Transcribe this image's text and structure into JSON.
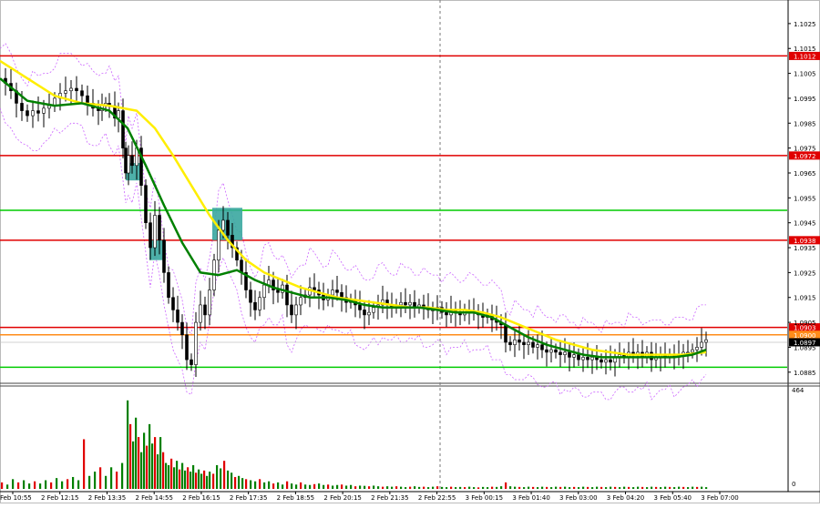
{
  "chart_data": {
    "type": "candlestick",
    "price_axis": {
      "range": [
        1.0882,
        1.1033
      ],
      "ticks": [
        "1.1025",
        "1.1015",
        "1.1005",
        "1.0995",
        "1.0985",
        "1.0975",
        "1.0965",
        "1.0955",
        "1.0945",
        "1.0935",
        "1.0925",
        "1.0915",
        "1.0905",
        "1.0895",
        "1.0885"
      ]
    },
    "horizontal_levels": [
      {
        "price": 1.1012,
        "label": "1.1012",
        "color": "#e00000",
        "labelled": true
      },
      {
        "price": 1.0972,
        "label": "1.0972",
        "color": "#e00000",
        "labelled": true
      },
      {
        "price": 1.0938,
        "label": "1.0938",
        "color": "#e00000",
        "labelled": true
      },
      {
        "price": 1.0903,
        "label": "1.0903",
        "color": "#e00000",
        "labelled": true
      },
      {
        "price": 1.09,
        "label": "1.0900",
        "color": "#ff8c1a",
        "labelled": true
      },
      {
        "price": 1.095,
        "label": "",
        "color": "#00cc00",
        "labelled": false
      },
      {
        "price": 1.0887,
        "label": "",
        "color": "#00cc00",
        "labelled": false
      }
    ],
    "current_price": {
      "price": 1.0897,
      "label": "1.0897",
      "color": "#000000"
    },
    "volume_axis": {
      "max": 464,
      "max_label": "464",
      "min_label": "0"
    },
    "time_labels": [
      "2 Feb 10:55",
      "2 Feb 12:15",
      "2 Feb 13:35",
      "2 Feb 14:55",
      "2 Feb 16:15",
      "2 Feb 17:35",
      "2 Feb 18:55",
      "2 Feb 20:15",
      "2 Feb 21:35",
      "2 Feb 22:55",
      "3 Feb 00:15",
      "3 Feb 01:40",
      "3 Feb 03:00",
      "3 Feb 04:20",
      "3 Feb 05:40",
      "3 Feb 07:00"
    ],
    "close_path": [
      [
        0,
        1.1003
      ],
      [
        6,
        1.1001
      ],
      [
        12,
        1.0998
      ],
      [
        18,
        1.0993
      ],
      [
        24,
        1.099
      ],
      [
        30,
        1.0988
      ],
      [
        36,
        1.099
      ],
      [
        42,
        1.0989
      ],
      [
        48,
        1.0991
      ],
      [
        54,
        1.0992
      ],
      [
        60,
        1.0995
      ],
      [
        66,
        1.0997
      ],
      [
        72,
        1.0998
      ],
      [
        78,
        1.0999
      ],
      [
        84,
        1.0998
      ],
      [
        90,
        1.0996
      ],
      [
        96,
        1.0993
      ],
      [
        102,
        1.0991
      ],
      [
        108,
        1.099
      ],
      [
        112,
        1.0992
      ],
      [
        116,
        1.0993
      ],
      [
        120,
        1.0992
      ],
      [
        126,
        1.0987
      ],
      [
        130,
        1.099
      ],
      [
        135,
        1.0975
      ],
      [
        138,
        1.0965
      ],
      [
        141,
        1.0972
      ],
      [
        145,
        1.0968
      ],
      [
        150,
        1.0975
      ],
      [
        155,
        1.096
      ],
      [
        160,
        1.0945
      ],
      [
        165,
        1.0935
      ],
      [
        170,
        1.0948
      ],
      [
        175,
        1.0938
      ],
      [
        180,
        1.0925
      ],
      [
        185,
        1.0915
      ],
      [
        190,
        1.091
      ],
      [
        195,
        1.0905
      ],
      [
        200,
        1.09
      ],
      [
        205,
        1.089
      ],
      [
        210,
        1.0888
      ],
      [
        215,
        1.0905
      ],
      [
        220,
        1.0912
      ],
      [
        225,
        1.0908
      ],
      [
        230,
        1.0918
      ],
      [
        235,
        1.093
      ],
      [
        240,
        1.0942
      ],
      [
        245,
        1.0946
      ],
      [
        250,
        1.094
      ],
      [
        255,
        1.0935
      ],
      [
        260,
        1.093
      ],
      [
        265,
        1.0925
      ],
      [
        270,
        1.0918
      ],
      [
        275,
        1.0913
      ],
      [
        280,
        1.091
      ],
      [
        285,
        1.0915
      ],
      [
        290,
        1.092
      ],
      [
        295,
        1.0922
      ],
      [
        300,
        1.0918
      ],
      [
        305,
        1.0917
      ],
      [
        310,
        1.092
      ],
      [
        315,
        1.0912
      ],
      [
        320,
        1.0908
      ],
      [
        325,
        1.0912
      ],
      [
        330,
        1.0915
      ],
      [
        335,
        1.0916
      ],
      [
        340,
        1.0919
      ],
      [
        345,
        1.0918
      ],
      [
        350,
        1.0916
      ],
      [
        355,
        1.0914
      ],
      [
        360,
        1.0916
      ],
      [
        365,
        1.0918
      ],
      [
        370,
        1.0917
      ],
      [
        375,
        1.0915
      ],
      [
        380,
        1.0913
      ],
      [
        385,
        1.0914
      ],
      [
        390,
        1.0912
      ],
      [
        395,
        1.091
      ],
      [
        400,
        1.0908
      ],
      [
        405,
        1.0909
      ],
      [
        410,
        1.0911
      ],
      [
        415,
        1.0912
      ],
      [
        420,
        1.0914
      ],
      [
        425,
        1.0912
      ],
      [
        430,
        1.0911
      ],
      [
        435,
        1.0912
      ],
      [
        440,
        1.0913
      ],
      [
        445,
        1.0912
      ],
      [
        450,
        1.0913
      ],
      [
        455,
        1.0911
      ],
      [
        460,
        1.0912
      ],
      [
        465,
        1.0911
      ],
      [
        470,
        1.091
      ],
      [
        475,
        1.091
      ],
      [
        480,
        1.0911
      ],
      [
        485,
        1.0909
      ],
      [
        490,
        1.0908
      ],
      [
        495,
        1.091
      ],
      [
        500,
        1.0909
      ],
      [
        505,
        1.0908
      ],
      [
        510,
        1.091
      ],
      [
        515,
        1.0909
      ],
      [
        520,
        1.0909
      ],
      [
        525,
        1.0908
      ],
      [
        530,
        1.0907
      ],
      [
        535,
        1.0908
      ],
      [
        540,
        1.0906
      ],
      [
        545,
        1.0905
      ],
      [
        550,
        1.0904
      ],
      [
        555,
        1.0897
      ],
      [
        560,
        1.0896
      ],
      [
        565,
        1.0898
      ],
      [
        570,
        1.0897
      ],
      [
        575,
        1.0896
      ],
      [
        580,
        1.0897
      ],
      [
        585,
        1.0895
      ],
      [
        590,
        1.0896
      ],
      [
        595,
        1.0894
      ],
      [
        600,
        1.0893
      ],
      [
        605,
        1.0894
      ],
      [
        610,
        1.0893
      ],
      [
        615,
        1.0892
      ],
      [
        620,
        1.0893
      ],
      [
        625,
        1.0891
      ],
      [
        630,
        1.0892
      ],
      [
        635,
        1.089
      ],
      [
        640,
        1.0891
      ],
      [
        645,
        1.089
      ],
      [
        650,
        1.0891
      ],
      [
        655,
        1.089
      ],
      [
        660,
        1.0889
      ],
      [
        665,
        1.089
      ],
      [
        670,
        1.0889
      ],
      [
        675,
        1.0891
      ],
      [
        680,
        1.0892
      ],
      [
        685,
        1.0891
      ],
      [
        690,
        1.0893
      ],
      [
        695,
        1.0892
      ],
      [
        700,
        1.0893
      ],
      [
        705,
        1.0891
      ],
      [
        710,
        1.0893
      ],
      [
        715,
        1.089
      ],
      [
        720,
        1.0891
      ],
      [
        725,
        1.0892
      ],
      [
        730,
        1.0891
      ],
      [
        735,
        1.0892
      ],
      [
        740,
        1.0891
      ],
      [
        745,
        1.0892
      ],
      [
        750,
        1.0893
      ],
      [
        755,
        1.0893
      ],
      [
        760,
        1.0894
      ],
      [
        765,
        1.0895
      ],
      [
        770,
        1.0897
      ],
      [
        775,
        1.0898
      ]
    ],
    "ma_fast_path": [
      [
        0,
        1.1003
      ],
      [
        30,
        1.0994
      ],
      [
        60,
        1.0992
      ],
      [
        90,
        1.0993
      ],
      [
        120,
        1.099
      ],
      [
        140,
        1.0983
      ],
      [
        160,
        1.0968
      ],
      [
        180,
        1.0952
      ],
      [
        200,
        1.0937
      ],
      [
        220,
        1.0925
      ],
      [
        240,
        1.0924
      ],
      [
        260,
        1.0926
      ],
      [
        280,
        1.0922
      ],
      [
        300,
        1.0919
      ],
      [
        320,
        1.0917
      ],
      [
        340,
        1.0915
      ],
      [
        360,
        1.0915
      ],
      [
        380,
        1.0914
      ],
      [
        400,
        1.0912
      ],
      [
        420,
        1.0911
      ],
      [
        440,
        1.0911
      ],
      [
        460,
        1.0911
      ],
      [
        480,
        1.091
      ],
      [
        500,
        1.0909
      ],
      [
        520,
        1.0909
      ],
      [
        540,
        1.0907
      ],
      [
        560,
        1.0903
      ],
      [
        580,
        1.0899
      ],
      [
        600,
        1.0896
      ],
      [
        620,
        1.0894
      ],
      [
        640,
        1.0892
      ],
      [
        660,
        1.0891
      ],
      [
        680,
        1.0891
      ],
      [
        700,
        1.0891
      ],
      [
        720,
        1.0891
      ],
      [
        740,
        1.0891
      ],
      [
        760,
        1.0892
      ],
      [
        775,
        1.0894
      ]
    ],
    "ma_slow_path": [
      [
        0,
        1.101
      ],
      [
        30,
        1.1003
      ],
      [
        60,
        1.0996
      ],
      [
        90,
        1.0993
      ],
      [
        120,
        1.0992
      ],
      [
        150,
        1.099
      ],
      [
        170,
        1.0983
      ],
      [
        190,
        1.0972
      ],
      [
        210,
        1.096
      ],
      [
        230,
        1.0948
      ],
      [
        250,
        1.0938
      ],
      [
        270,
        1.093
      ],
      [
        290,
        1.0925
      ],
      [
        310,
        1.0922
      ],
      [
        330,
        1.0919
      ],
      [
        350,
        1.0917
      ],
      [
        370,
        1.0915
      ],
      [
        390,
        1.0914
      ],
      [
        410,
        1.0913
      ],
      [
        430,
        1.0912
      ],
      [
        450,
        1.0911
      ],
      [
        470,
        1.0911
      ],
      [
        490,
        1.091
      ],
      [
        510,
        1.091
      ],
      [
        530,
        1.0909
      ],
      [
        550,
        1.0907
      ],
      [
        570,
        1.0904
      ],
      [
        590,
        1.0901
      ],
      [
        610,
        1.0898
      ],
      [
        630,
        1.0896
      ],
      [
        650,
        1.0894
      ],
      [
        670,
        1.0893
      ],
      [
        690,
        1.0892
      ],
      [
        710,
        1.0892
      ],
      [
        730,
        1.0892
      ],
      [
        750,
        1.0892
      ],
      [
        775,
        1.0893
      ]
    ],
    "boxes": [
      {
        "x0": 138,
        "x1": 154,
        "top": 1.0969,
        "bottom": 1.0962
      },
      {
        "x0": 164,
        "x1": 182,
        "top": 1.0938,
        "bottom": 1.093
      },
      {
        "x0": 233,
        "x1": 266,
        "top": 1.0951,
        "bottom": 1.0938
      }
    ],
    "volume_bars": [
      [
        2,
        30
      ],
      [
        8,
        20
      ],
      [
        14,
        45
      ],
      [
        20,
        30
      ],
      [
        26,
        40
      ],
      [
        32,
        25
      ],
      [
        38,
        35
      ],
      [
        44,
        25
      ],
      [
        50,
        40
      ],
      [
        56,
        30
      ],
      [
        62,
        50
      ],
      [
        68,
        35
      ],
      [
        74,
        45
      ],
      [
        80,
        55
      ],
      [
        86,
        40
      ],
      [
        92,
        230
      ],
      [
        98,
        60
      ],
      [
        104,
        80
      ],
      [
        110,
        100
      ],
      [
        116,
        60
      ],
      [
        122,
        100
      ],
      [
        128,
        80
      ],
      [
        134,
        120
      ],
      [
        140,
        410
      ],
      [
        143,
        300
      ],
      [
        146,
        220
      ],
      [
        149,
        330
      ],
      [
        152,
        240
      ],
      [
        155,
        170
      ],
      [
        158,
        260
      ],
      [
        161,
        200
      ],
      [
        164,
        300
      ],
      [
        167,
        210
      ],
      [
        170,
        240
      ],
      [
        173,
        160
      ],
      [
        176,
        240
      ],
      [
        179,
        170
      ],
      [
        182,
        120
      ],
      [
        185,
        110
      ],
      [
        188,
        140
      ],
      [
        191,
        100
      ],
      [
        194,
        130
      ],
      [
        197,
        90
      ],
      [
        200,
        120
      ],
      [
        203,
        85
      ],
      [
        206,
        100
      ],
      [
        209,
        80
      ],
      [
        212,
        110
      ],
      [
        215,
        75
      ],
      [
        218,
        90
      ],
      [
        221,
        70
      ],
      [
        224,
        85
      ],
      [
        227,
        60
      ],
      [
        230,
        80
      ],
      [
        234,
        70
      ],
      [
        238,
        110
      ],
      [
        242,
        95
      ],
      [
        246,
        130
      ],
      [
        250,
        85
      ],
      [
        254,
        75
      ],
      [
        258,
        55
      ],
      [
        262,
        60
      ],
      [
        266,
        50
      ],
      [
        270,
        45
      ],
      [
        275,
        40
      ],
      [
        280,
        35
      ],
      [
        285,
        45
      ],
      [
        290,
        30
      ],
      [
        295,
        35
      ],
      [
        300,
        25
      ],
      [
        305,
        30
      ],
      [
        310,
        20
      ],
      [
        315,
        35
      ],
      [
        320,
        25
      ],
      [
        325,
        20
      ],
      [
        330,
        30
      ],
      [
        335,
        20
      ],
      [
        340,
        18
      ],
      [
        345,
        22
      ],
      [
        350,
        25
      ],
      [
        355,
        18
      ],
      [
        360,
        20
      ],
      [
        365,
        15
      ],
      [
        370,
        18
      ],
      [
        375,
        20
      ],
      [
        380,
        15
      ],
      [
        385,
        18
      ],
      [
        390,
        12
      ],
      [
        395,
        15
      ],
      [
        400,
        14
      ],
      [
        405,
        12
      ],
      [
        410,
        15
      ],
      [
        415,
        12
      ],
      [
        420,
        10
      ],
      [
        425,
        12
      ],
      [
        430,
        10
      ],
      [
        435,
        12
      ],
      [
        440,
        10
      ],
      [
        445,
        8
      ],
      [
        450,
        10
      ],
      [
        455,
        12
      ],
      [
        460,
        9
      ],
      [
        465,
        10
      ],
      [
        470,
        8
      ],
      [
        475,
        10
      ],
      [
        480,
        12
      ],
      [
        485,
        9
      ],
      [
        490,
        8
      ],
      [
        495,
        10
      ],
      [
        500,
        8
      ],
      [
        505,
        9
      ],
      [
        510,
        8
      ],
      [
        515,
        10
      ],
      [
        520,
        8
      ],
      [
        525,
        7
      ],
      [
        530,
        9
      ],
      [
        535,
        8
      ],
      [
        540,
        10
      ],
      [
        545,
        9
      ],
      [
        550,
        12
      ],
      [
        555,
        30
      ],
      [
        560,
        12
      ],
      [
        565,
        10
      ],
      [
        570,
        9
      ],
      [
        575,
        8
      ],
      [
        580,
        10
      ],
      [
        585,
        9
      ],
      [
        590,
        8
      ],
      [
        595,
        10
      ],
      [
        600,
        9
      ],
      [
        605,
        8
      ],
      [
        610,
        10
      ],
      [
        615,
        9
      ],
      [
        620,
        10
      ],
      [
        625,
        8
      ],
      [
        630,
        9
      ],
      [
        635,
        8
      ],
      [
        640,
        10
      ],
      [
        645,
        9
      ],
      [
        650,
        8
      ],
      [
        655,
        10
      ],
      [
        660,
        9
      ],
      [
        665,
        8
      ],
      [
        670,
        10
      ],
      [
        675,
        9
      ],
      [
        680,
        8
      ],
      [
        685,
        10
      ],
      [
        690,
        9
      ],
      [
        695,
        8
      ],
      [
        700,
        10
      ],
      [
        705,
        9
      ],
      [
        710,
        8
      ],
      [
        715,
        10
      ],
      [
        720,
        9
      ],
      [
        725,
        8
      ],
      [
        730,
        10
      ],
      [
        735,
        9
      ],
      [
        740,
        8
      ],
      [
        745,
        10
      ],
      [
        750,
        9
      ],
      [
        755,
        8
      ],
      [
        760,
        10
      ],
      [
        765,
        9
      ],
      [
        770,
        10
      ],
      [
        775,
        8
      ]
    ],
    "colors": {
      "up": "#00aa00",
      "down": "#000000",
      "ma_fast": "#008000",
      "ma_slow": "#ffee00",
      "envelope": "#cc66ff",
      "box": "#3aa7a0",
      "vol_up": "#008000",
      "vol_down": "#e00000",
      "grid": "#9a9a9a",
      "vline": "#777777"
    }
  }
}
